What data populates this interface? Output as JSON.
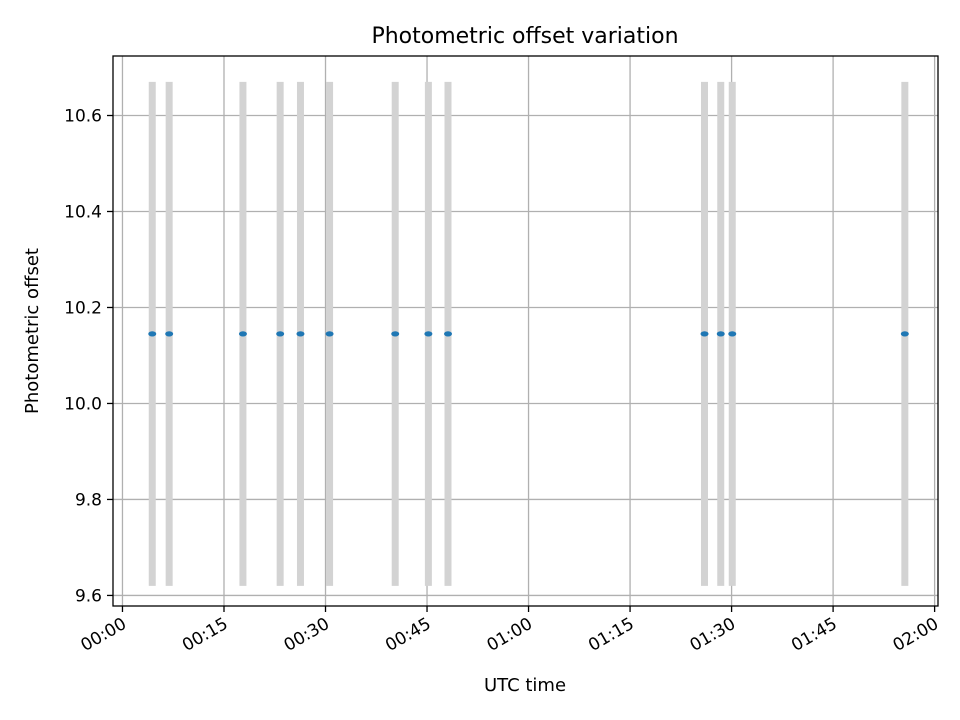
{
  "chart_data": {
    "type": "scatter",
    "title": "Photometric offset variation",
    "xlabel": "UTC time",
    "ylabel": "Photometric offset",
    "x_tick_labels": [
      "00:00",
      "00:15",
      "00:30",
      "00:45",
      "01:00",
      "01:15",
      "01:30",
      "01:45",
      "02:00"
    ],
    "x_ticks": [
      "00:00",
      "00:15",
      "00:30",
      "00:45",
      "01:00",
      "01:15",
      "01:30",
      "01:45",
      "02:00"
    ],
    "xlim": [
      "23:58:36",
      "02:00:30"
    ],
    "y_ticks": [
      9.6,
      9.8,
      10.0,
      10.2,
      10.4,
      10.6
    ],
    "y_tick_labels": [
      "9.6",
      "9.8",
      "10.0",
      "10.2",
      "10.4",
      "10.6"
    ],
    "ylim": [
      9.578,
      10.724
    ],
    "grid": true,
    "point_color": "#1f77b4",
    "errorbar_color": "#d3d3d3",
    "points": [
      {
        "x": "00:04:24",
        "y": 10.145,
        "ylow": 9.62,
        "yhigh": 10.67
      },
      {
        "x": "00:06:54",
        "y": 10.145,
        "ylow": 9.62,
        "yhigh": 10.67
      },
      {
        "x": "00:17:48",
        "y": 10.145,
        "ylow": 9.62,
        "yhigh": 10.67
      },
      {
        "x": "00:23:18",
        "y": 10.145,
        "ylow": 9.62,
        "yhigh": 10.67
      },
      {
        "x": "00:26:18",
        "y": 10.145,
        "ylow": 9.62,
        "yhigh": 10.67
      },
      {
        "x": "00:30:36",
        "y": 10.145,
        "ylow": 9.62,
        "yhigh": 10.67
      },
      {
        "x": "00:40:18",
        "y": 10.145,
        "ylow": 9.62,
        "yhigh": 10.67
      },
      {
        "x": "00:45:12",
        "y": 10.145,
        "ylow": 9.62,
        "yhigh": 10.67
      },
      {
        "x": "00:48:06",
        "y": 10.145,
        "ylow": 9.62,
        "yhigh": 10.67
      },
      {
        "x": "01:26:00",
        "y": 10.145,
        "ylow": 9.62,
        "yhigh": 10.67
      },
      {
        "x": "01:28:24",
        "y": 10.145,
        "ylow": 9.62,
        "yhigh": 10.67
      },
      {
        "x": "01:30:06",
        "y": 10.145,
        "ylow": 9.62,
        "yhigh": 10.67
      },
      {
        "x": "01:55:36",
        "y": 10.145,
        "ylow": 9.62,
        "yhigh": 10.67
      }
    ]
  }
}
